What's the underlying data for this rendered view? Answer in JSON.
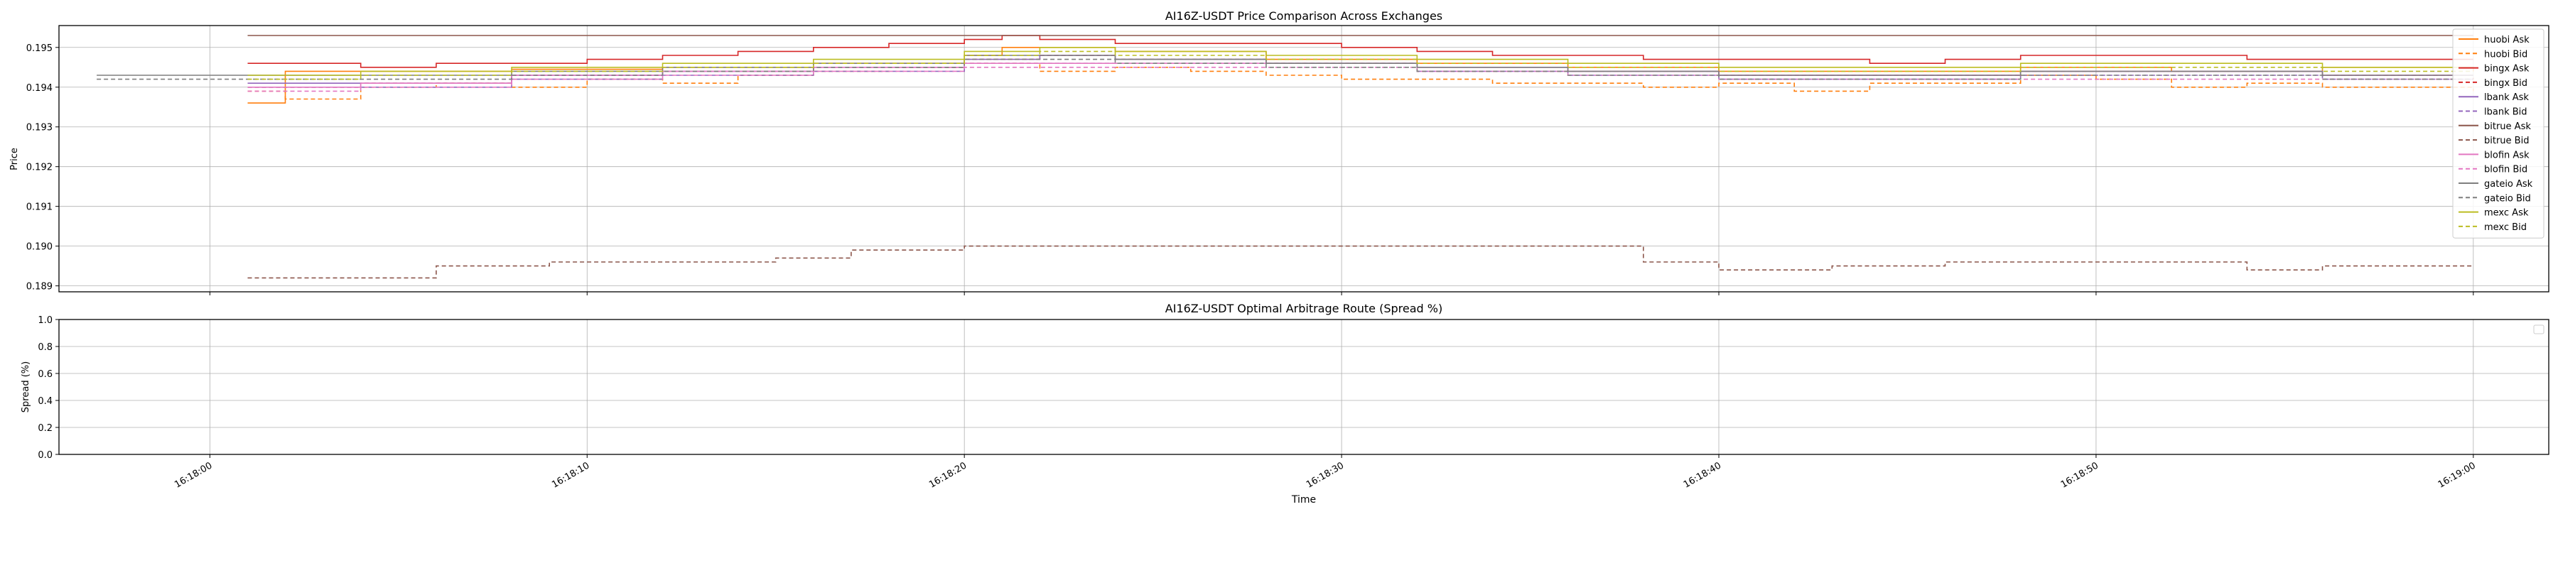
{
  "chart_data": [
    {
      "type": "line",
      "title": "AI16Z-USDT Price Comparison Across Exchanges",
      "xlabel": "",
      "ylabel": "Price",
      "xlim": [
        "16:17:56",
        "16:19:02"
      ],
      "ylim": [
        0.18885,
        0.19555
      ],
      "grid": true,
      "legend_position": "upper right",
      "y_ticks": [
        "0.189",
        "0.190",
        "0.191",
        "0.192",
        "0.193",
        "0.194",
        "0.195"
      ],
      "series": [
        {
          "name": "huobi Ask",
          "color": "#ff7f0e",
          "dash": "solid",
          "x": [
            "16:18:01",
            "16:18:02",
            "16:18:04",
            "16:18:08",
            "16:18:12",
            "16:18:16",
            "16:18:20",
            "16:18:21",
            "16:18:24",
            "16:18:28",
            "16:18:32",
            "16:18:36",
            "16:18:40",
            "16:18:44",
            "16:18:48",
            "16:18:52",
            "16:18:56",
            "16:19:00"
          ],
          "y": [
            0.1936,
            0.1944,
            0.1944,
            0.19445,
            0.1945,
            0.1946,
            0.1948,
            0.195,
            0.1949,
            0.1947,
            0.1946,
            0.1945,
            0.1944,
            0.1944,
            0.1945,
            0.1944,
            0.1945,
            0.1944
          ]
        },
        {
          "name": "huobi Bid",
          "color": "#ff7f0e",
          "dash": "dashed",
          "x": [
            "16:18:01",
            "16:18:02",
            "16:18:04",
            "16:18:06",
            "16:18:08",
            "16:18:10",
            "16:18:12",
            "16:18:14",
            "16:18:16",
            "16:18:18",
            "16:18:20",
            "16:18:22",
            "16:18:24",
            "16:18:26",
            "16:18:28",
            "16:18:30",
            "16:18:32",
            "16:18:34",
            "16:18:36",
            "16:18:38",
            "16:18:40",
            "16:18:42",
            "16:18:44",
            "16:18:46",
            "16:18:48",
            "16:18:50",
            "16:18:52",
            "16:18:54",
            "16:18:56",
            "16:18:58",
            "16:19:00"
          ],
          "y": [
            0.1939,
            0.1937,
            0.194,
            0.1941,
            0.194,
            0.1942,
            0.1941,
            0.1943,
            0.1944,
            0.1945,
            0.1946,
            0.1944,
            0.1945,
            0.1944,
            0.1943,
            0.1942,
            0.1942,
            0.1941,
            0.1941,
            0.194,
            0.1941,
            0.1939,
            0.1941,
            0.1941,
            0.1943,
            0.1942,
            0.194,
            0.1941,
            0.194,
            0.194,
            0.1939
          ]
        },
        {
          "name": "bingx Ask",
          "color": "#d62728",
          "dash": "solid",
          "x": [
            "16:18:01",
            "16:18:02",
            "16:18:04",
            "16:18:06",
            "16:18:08",
            "16:18:10",
            "16:18:12",
            "16:18:14",
            "16:18:16",
            "16:18:18",
            "16:18:20",
            "16:18:21",
            "16:18:22",
            "16:18:24",
            "16:18:26",
            "16:18:28",
            "16:18:30",
            "16:18:32",
            "16:18:34",
            "16:18:36",
            "16:18:38",
            "16:18:40",
            "16:18:42",
            "16:18:44",
            "16:18:46",
            "16:18:48",
            "16:18:50",
            "16:18:52",
            "16:18:54",
            "16:18:56",
            "16:18:58",
            "16:19:00"
          ],
          "y": [
            0.1946,
            0.1946,
            0.1945,
            0.1946,
            0.1946,
            0.1947,
            0.1948,
            0.1949,
            0.195,
            0.1951,
            0.1952,
            0.1953,
            0.1952,
            0.1951,
            0.1951,
            0.1951,
            0.195,
            0.1949,
            0.1948,
            0.1948,
            0.1947,
            0.1947,
            0.1947,
            0.1946,
            0.1947,
            0.1948,
            0.1948,
            0.1948,
            0.1947,
            0.1947,
            0.1947,
            0.1947
          ]
        },
        {
          "name": "bingx Bid",
          "color": "#d62728",
          "dash": "dashed",
          "x": [
            "16:18:01",
            "16:18:04",
            "16:18:08",
            "16:18:12",
            "16:18:16",
            "16:18:20",
            "16:18:22",
            "16:18:24",
            "16:18:28",
            "16:18:32",
            "16:18:36",
            "16:18:40",
            "16:18:44",
            "16:18:48",
            "16:18:52",
            "16:18:56",
            "16:19:00"
          ],
          "y": [
            0.194,
            0.1941,
            0.1943,
            0.1944,
            0.1945,
            0.1947,
            0.1948,
            0.1947,
            0.1946,
            0.1944,
            0.1944,
            0.1943,
            0.1943,
            0.1944,
            0.1944,
            0.1943,
            0.1942
          ]
        },
        {
          "name": "lbank Ask",
          "color": "#9467bd",
          "dash": "solid",
          "x": [
            "16:18:01",
            "16:18:04",
            "16:18:08",
            "16:18:12",
            "16:18:16",
            "16:18:20",
            "16:18:22",
            "16:18:24",
            "16:18:28",
            "16:18:32",
            "16:18:36",
            "16:18:40",
            "16:18:44",
            "16:18:48",
            "16:18:52",
            "16:18:56",
            "16:19:00"
          ],
          "y": [
            0.1941,
            0.1941,
            0.1943,
            0.1944,
            0.1945,
            0.1947,
            0.1948,
            0.1947,
            0.1946,
            0.1945,
            0.1944,
            0.1943,
            0.1943,
            0.1944,
            0.1944,
            0.1943,
            0.1943
          ]
        },
        {
          "name": "lbank Bid",
          "color": "#9467bd",
          "dash": "dashed",
          "x": [
            "16:18:01",
            "16:18:04",
            "16:18:08",
            "16:18:12",
            "16:18:16",
            "16:18:20",
            "16:18:24",
            "16:18:28",
            "16:18:32",
            "16:18:36",
            "16:18:40",
            "16:18:44",
            "16:18:48",
            "16:18:52",
            "16:18:56",
            "16:19:00"
          ],
          "y": [
            0.194,
            0.194,
            0.1942,
            0.1943,
            0.1944,
            0.1946,
            0.1946,
            0.1946,
            0.1944,
            0.1943,
            0.1942,
            0.1942,
            0.1943,
            0.1943,
            0.1942,
            0.1942
          ]
        },
        {
          "name": "bitrue Ask",
          "color": "#8c564b",
          "dash": "solid",
          "x": [
            "16:18:01",
            "16:18:10",
            "16:18:20",
            "16:18:30",
            "16:18:40",
            "16:18:50",
            "16:19:00"
          ],
          "y": [
            0.1953,
            0.1953,
            0.1953,
            0.1953,
            0.1953,
            0.1953,
            0.1953
          ]
        },
        {
          "name": "bitrue Bid",
          "color": "#8c564b",
          "dash": "dashed",
          "x": [
            "16:18:01",
            "16:18:03",
            "16:18:06",
            "16:18:09",
            "16:18:12",
            "16:18:15",
            "16:18:17",
            "16:18:20",
            "16:18:21",
            "16:18:23",
            "16:18:26",
            "16:18:29",
            "16:18:32",
            "16:18:35",
            "16:18:37",
            "16:18:38",
            "16:18:40",
            "16:18:43",
            "16:18:46",
            "16:18:49",
            "16:18:50",
            "16:18:53",
            "16:18:54",
            "16:18:56",
            "16:18:58",
            "16:19:00"
          ],
          "y": [
            0.1892,
            0.1892,
            0.1895,
            0.1896,
            0.1896,
            0.1897,
            0.1899,
            0.19,
            0.19,
            0.19,
            0.19,
            0.19,
            0.19,
            0.19,
            0.19,
            0.1896,
            0.1894,
            0.1895,
            0.1896,
            0.1896,
            0.1896,
            0.1896,
            0.1894,
            0.1895,
            0.1895,
            0.1895
          ]
        },
        {
          "name": "blofin Ask",
          "color": "#e377c2",
          "dash": "solid",
          "x": [
            "16:18:01",
            "16:18:04",
            "16:18:08",
            "16:18:12",
            "16:18:16",
            "16:18:20",
            "16:18:24",
            "16:18:28",
            "16:18:32",
            "16:18:36",
            "16:18:40",
            "16:18:44",
            "16:18:48",
            "16:18:52",
            "16:18:56",
            "16:19:00"
          ],
          "y": [
            0.194,
            0.1941,
            0.1943,
            0.1944,
            0.1945,
            0.1946,
            0.1946,
            0.1946,
            0.1945,
            0.1944,
            0.1943,
            0.1943,
            0.1944,
            0.1944,
            0.1943,
            0.1943
          ]
        },
        {
          "name": "blofin Bid",
          "color": "#e377c2",
          "dash": "dashed",
          "x": [
            "16:18:01",
            "16:18:04",
            "16:18:08",
            "16:18:12",
            "16:18:16",
            "16:18:20",
            "16:18:24",
            "16:18:28",
            "16:18:32",
            "16:18:36",
            "16:18:40",
            "16:18:44",
            "16:18:48",
            "16:18:52",
            "16:18:56",
            "16:19:00"
          ],
          "y": [
            0.1939,
            0.194,
            0.1942,
            0.1943,
            0.1944,
            0.1945,
            0.1945,
            0.1945,
            0.1944,
            0.1943,
            0.1942,
            0.1942,
            0.1942,
            0.1942,
            0.1942,
            0.1942
          ]
        },
        {
          "name": "gateio Ask",
          "color": "#7f7f7f",
          "dash": "solid",
          "x": [
            "16:17:57",
            "16:18:01",
            "16:18:04",
            "16:18:08",
            "16:18:12",
            "16:18:16",
            "16:18:20",
            "16:18:24",
            "16:18:28",
            "16:18:32",
            "16:18:36",
            "16:18:40",
            "16:18:44",
            "16:18:48",
            "16:18:52",
            "16:18:56",
            "16:19:00"
          ],
          "y": [
            0.1943,
            0.1943,
            0.1943,
            0.1944,
            0.1945,
            0.1946,
            0.1948,
            0.1947,
            0.1946,
            0.1945,
            0.1944,
            0.1943,
            0.1943,
            0.1944,
            0.1944,
            0.1943,
            0.1943
          ]
        },
        {
          "name": "gateio Bid",
          "color": "#7f7f7f",
          "dash": "dashed",
          "x": [
            "16:17:57",
            "16:18:01",
            "16:18:04",
            "16:18:08",
            "16:18:12",
            "16:18:16",
            "16:18:20",
            "16:18:24",
            "16:18:28",
            "16:18:32",
            "16:18:36",
            "16:18:40",
            "16:18:44",
            "16:18:48",
            "16:18:52",
            "16:18:56",
            "16:19:00"
          ],
          "y": [
            0.1942,
            0.1942,
            0.1942,
            0.1943,
            0.1944,
            0.1945,
            0.1947,
            0.1946,
            0.1945,
            0.1944,
            0.1943,
            0.1942,
            0.1942,
            0.1943,
            0.1943,
            0.1942,
            0.1942
          ]
        },
        {
          "name": "mexc Ask",
          "color": "#bcbd22",
          "dash": "solid",
          "x": [
            "16:18:01",
            "16:18:04",
            "16:18:08",
            "16:18:12",
            "16:18:16",
            "16:18:20",
            "16:18:22",
            "16:18:24",
            "16:18:28",
            "16:18:32",
            "16:18:36",
            "16:18:40",
            "16:18:44",
            "16:18:48",
            "16:18:52",
            "16:18:56",
            "16:19:00"
          ],
          "y": [
            0.1943,
            0.1944,
            0.1945,
            0.1946,
            0.1947,
            0.1949,
            0.195,
            0.1949,
            0.1948,
            0.1947,
            0.1946,
            0.1945,
            0.1945,
            0.1946,
            0.1946,
            0.1945,
            0.1945
          ]
        },
        {
          "name": "mexc Bid",
          "color": "#bcbd22",
          "dash": "dashed",
          "x": [
            "16:18:01",
            "16:18:04",
            "16:18:08",
            "16:18:12",
            "16:18:16",
            "16:18:20",
            "16:18:22",
            "16:18:24",
            "16:18:28",
            "16:18:32",
            "16:18:36",
            "16:18:40",
            "16:18:44",
            "16:18:48",
            "16:18:52",
            "16:18:56",
            "16:19:00"
          ],
          "y": [
            0.1942,
            0.1943,
            0.1944,
            0.1945,
            0.1946,
            0.1948,
            0.1949,
            0.1948,
            0.1947,
            0.1946,
            0.1945,
            0.1944,
            0.1944,
            0.1945,
            0.1945,
            0.1944,
            0.1944
          ]
        }
      ]
    },
    {
      "type": "line",
      "title": "AI16Z-USDT Optimal Arbitrage Route (Spread %)",
      "xlabel": "Time",
      "ylabel": "Spread (%)",
      "ylim": [
        0.0,
        1.0
      ],
      "grid": true,
      "legend_position": "upper right",
      "y_ticks": [
        "0.0",
        "0.2",
        "0.4",
        "0.6",
        "0.8",
        "1.0"
      ],
      "x_ticks": [
        "16:18:00",
        "16:18:10",
        "16:18:20",
        "16:18:30",
        "16:18:40",
        "16:18:50",
        "16:19:00"
      ],
      "series": []
    }
  ]
}
